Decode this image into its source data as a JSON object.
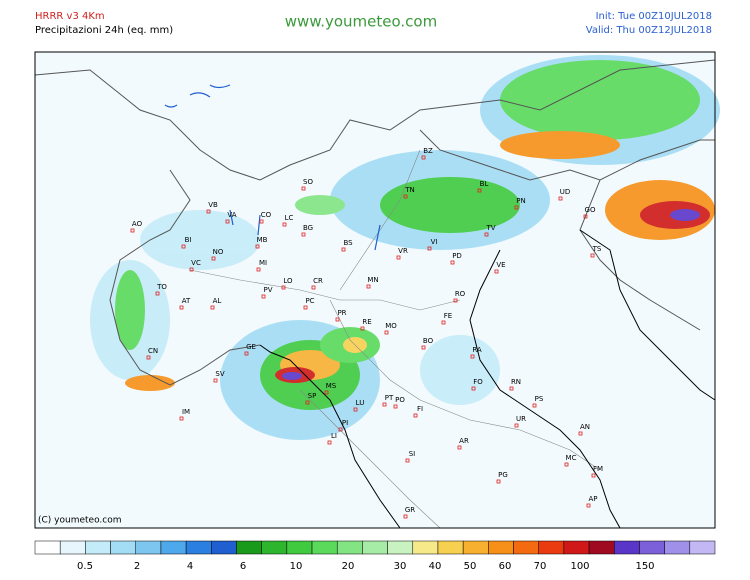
{
  "header": {
    "model": "HRRR v3 4Km",
    "product": "Precipitazioni 24h (eq. mm)",
    "website": "www.youmeteo.com",
    "init": "Init: Tue 00Z10JUL2018",
    "valid": "Valid: Thu 00Z12JUL2018"
  },
  "copyright": "(C) youmeteo.com",
  "cities": [
    "BZ",
    "SO",
    "TN",
    "BL",
    "UD",
    "PN",
    "AO",
    "VB",
    "VA",
    "CO",
    "LC",
    "BG",
    "GO",
    "TS",
    "BI",
    "NO",
    "MB",
    "BS",
    "VR",
    "VI",
    "TV",
    "PD",
    "VE",
    "VC",
    "MI",
    "CR",
    "MN",
    "TO",
    "AT",
    "AL",
    "PV",
    "LO",
    "PC",
    "RO",
    "FE",
    "PR",
    "RE",
    "MO",
    "BO",
    "RA",
    "CN",
    "GE",
    "SP",
    "MS",
    "FO",
    "RN",
    "IM",
    "SV",
    "LU",
    "PT",
    "PO",
    "PS",
    "FI",
    "PI",
    "UR",
    "LI",
    "AN",
    "AR",
    "SI",
    "MC",
    "PG",
    "FM",
    "GR",
    "AP"
  ],
  "legend": {
    "colors": [
      "#ffffff",
      "#e6f6fc",
      "#c4ebf8",
      "#a3dcf5",
      "#7cc6f0",
      "#4ea8ec",
      "#2a7fe0",
      "#1f5fd0",
      "#1a9a1a",
      "#2db52d",
      "#3fca3f",
      "#5ad95a",
      "#82e482",
      "#a6eca6",
      "#c8f2c0",
      "#f5e98a",
      "#f8d050",
      "#f7b030",
      "#f79018",
      "#f46a10",
      "#ea3a10",
      "#d01818",
      "#a00a20",
      "#5a36c8",
      "#7c60da",
      "#a090ea",
      "#c4b8f4"
    ],
    "ticks": [
      "0.5",
      "2",
      "4",
      "6",
      "10",
      "20",
      "30",
      "40",
      "50",
      "60",
      "70",
      "100",
      "150"
    ]
  }
}
